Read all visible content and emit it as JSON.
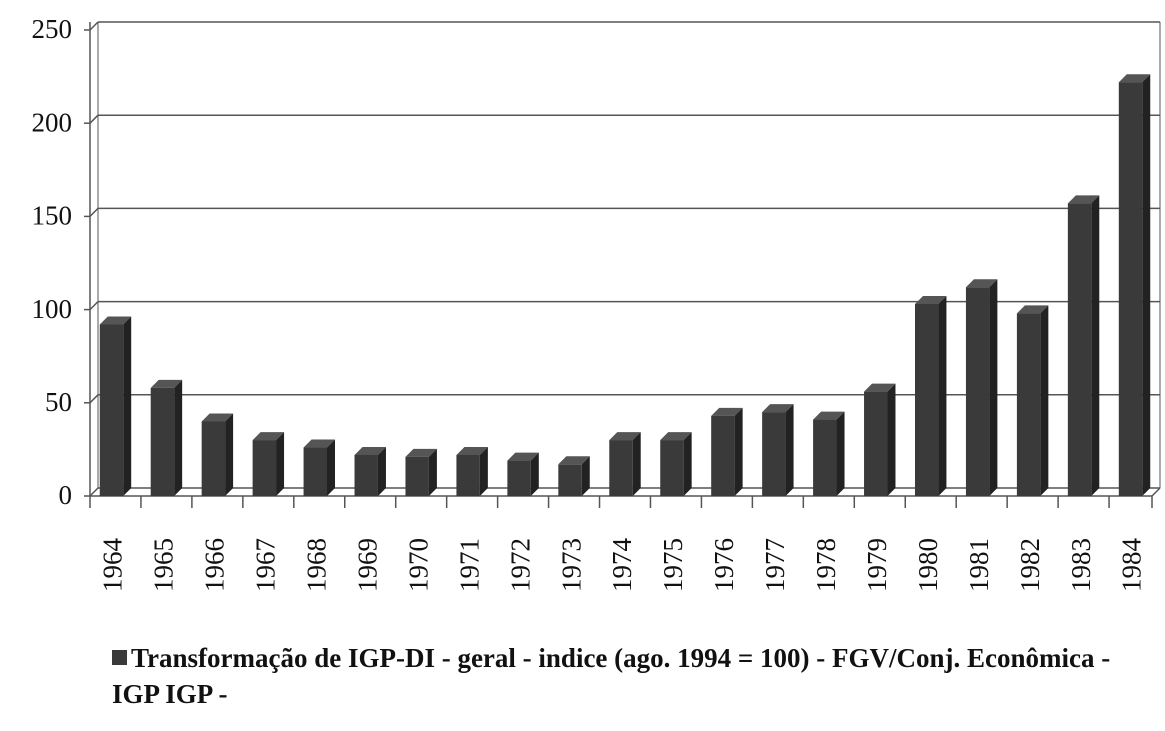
{
  "chart_data": {
    "type": "bar",
    "categories": [
      "1964",
      "1965",
      "1966",
      "1967",
      "1968",
      "1969",
      "1970",
      "1971",
      "1972",
      "1973",
      "1974",
      "1975",
      "1976",
      "1977",
      "1978",
      "1979",
      "1980",
      "1981",
      "1982",
      "1983",
      "1984"
    ],
    "series": [
      {
        "name": "Transformação de IGP-DI - geral - indice (ago. 1994 = 100) - FGV/Conj. Econômica - IGP  IGP -",
        "color": "#3a3a3a",
        "values": [
          92,
          58,
          40,
          30,
          26,
          22,
          21,
          22,
          19,
          17,
          30,
          30,
          43,
          45,
          41,
          56,
          103,
          112,
          98,
          157,
          222
        ]
      }
    ],
    "ylim": [
      0,
      250
    ],
    "yticks": [
      0,
      50,
      100,
      150,
      200,
      250
    ],
    "grid": true,
    "legend": "bottom"
  }
}
